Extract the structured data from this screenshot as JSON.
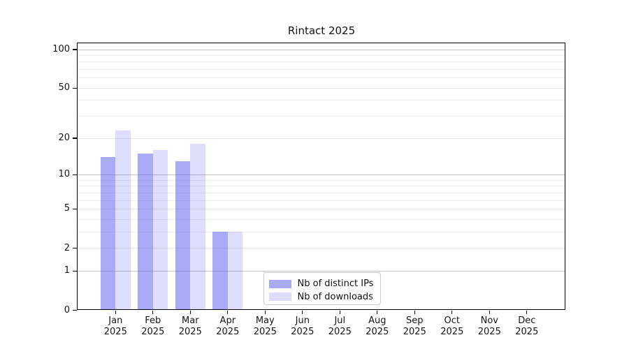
{
  "title": "Rintact 2025",
  "chart_data": {
    "type": "bar",
    "title": "Rintact 2025",
    "categories": [
      "Jan",
      "Feb",
      "Mar",
      "Apr",
      "May",
      "Jun",
      "Jul",
      "Aug",
      "Sep",
      "Oct",
      "Nov",
      "Dec"
    ],
    "year_label": "2025",
    "series": [
      {
        "name": "Nb of distinct IPs",
        "color": "rgba(92,92,242,0.52)",
        "values": [
          14,
          15,
          13,
          3,
          0,
          0,
          0,
          0,
          0,
          0,
          0,
          0
        ]
      },
      {
        "name": "Nb of downloads",
        "color": "rgba(92,92,242,0.20)",
        "values": [
          23,
          16,
          18,
          3,
          0,
          0,
          0,
          0,
          0,
          0,
          0,
          0
        ]
      }
    ],
    "yscale": "log1p",
    "ylim": [
      0,
      114
    ],
    "yticks": [
      0,
      1,
      2,
      5,
      10,
      20,
      50,
      100
    ],
    "minor_gridlines": [
      3,
      4,
      6,
      7,
      8,
      9,
      30,
      40,
      60,
      70,
      80,
      90
    ],
    "emphasized_gridlines": [
      1,
      10,
      100
    ],
    "grid": true,
    "legend_position": "lower center, inside plot"
  },
  "colors": {
    "bar_base": "#5c5cf2",
    "grid_minor": "#efefef",
    "grid_major": "#e7e7e7",
    "grid_power10": "#c6c6c6",
    "axis": "#000000",
    "legend_border": "#cccccc",
    "background": "#ffffff"
  }
}
